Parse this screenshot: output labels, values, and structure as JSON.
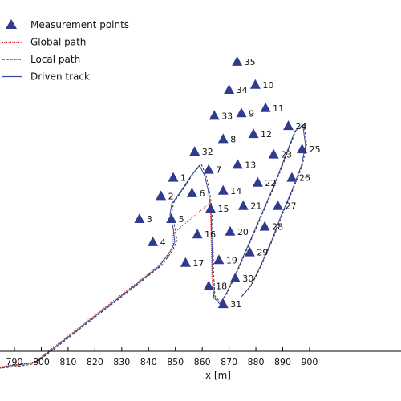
{
  "chart_data": {
    "type": "scatter",
    "xlabel": "x [m]",
    "ylabel": "",
    "xlim": [
      786,
      904
    ],
    "x_ticks": [
      "790",
      "800",
      "810",
      "820",
      "830",
      "840",
      "850",
      "860",
      "870",
      "880",
      "890",
      "900"
    ],
    "grid": false,
    "legend": {
      "placement": "top-left",
      "entries": [
        {
          "label": "Measurement points",
          "marker": "triangle",
          "color": "#2e3b8e"
        },
        {
          "label": "Global path",
          "style": "dotted",
          "color": "#cc1111"
        },
        {
          "label": "Local path",
          "style": "dashed",
          "color": "#333333"
        },
        {
          "label": "Driven track",
          "style": "solid",
          "color": "#3a4aa8"
        }
      ]
    },
    "colors": {
      "measurement_points": "#2e3b8e",
      "global_path": "#cc1111",
      "local_path": "#333333",
      "driven_track": "#3a4aa8",
      "axis": "#000000"
    },
    "points": [
      {
        "label": "1",
        "x": 849.2,
        "y": 40.0
      },
      {
        "label": "2",
        "x": 844.6,
        "y": 34.1
      },
      {
        "label": "3",
        "x": 836.6,
        "y": 26.7
      },
      {
        "label": "4",
        "x": 841.6,
        "y": 19.2
      },
      {
        "label": "5",
        "x": 848.5,
        "y": 26.7
      },
      {
        "label": "6",
        "x": 856.2,
        "y": 35.0
      },
      {
        "label": "7",
        "x": 862.4,
        "y": 42.6
      },
      {
        "label": "8",
        "x": 867.8,
        "y": 52.5
      },
      {
        "label": "9",
        "x": 874.6,
        "y": 60.8
      },
      {
        "label": "10",
        "x": 879.8,
        "y": 70.0
      },
      {
        "label": "11",
        "x": 883.6,
        "y": 62.5
      },
      {
        "label": "12",
        "x": 879.1,
        "y": 54.1
      },
      {
        "label": "13",
        "x": 873.2,
        "y": 44.2
      },
      {
        "label": "14",
        "x": 867.8,
        "y": 35.8
      },
      {
        "label": "15",
        "x": 863.1,
        "y": 30.0
      },
      {
        "label": "16",
        "x": 858.2,
        "y": 21.7
      },
      {
        "label": "17",
        "x": 853.8,
        "y": 12.5
      },
      {
        "label": "18",
        "x": 862.4,
        "y": 5.0
      },
      {
        "label": "19",
        "x": 866.2,
        "y": 13.4
      },
      {
        "label": "20",
        "x": 870.4,
        "y": 22.6
      },
      {
        "label": "21",
        "x": 875.3,
        "y": 30.9
      },
      {
        "label": "22",
        "x": 880.7,
        "y": 38.4
      },
      {
        "label": "23",
        "x": 886.6,
        "y": 47.5
      },
      {
        "label": "24",
        "x": 892.1,
        "y": 56.7
      },
      {
        "label": "25",
        "x": 897.2,
        "y": 49.2
      },
      {
        "label": "26",
        "x": 893.4,
        "y": 40.0
      },
      {
        "label": "27",
        "x": 888.2,
        "y": 30.9
      },
      {
        "label": "28",
        "x": 883.3,
        "y": 24.2
      },
      {
        "label": "29",
        "x": 877.7,
        "y": 15.9
      },
      {
        "label": "30",
        "x": 872.3,
        "y": 7.5
      },
      {
        "label": "31",
        "x": 867.8,
        "y": -0.8
      },
      {
        "label": "32",
        "x": 857.2,
        "y": 48.4
      },
      {
        "label": "33",
        "x": 864.5,
        "y": 60.0
      },
      {
        "label": "34",
        "x": 870.0,
        "y": 68.4
      },
      {
        "label": "35",
        "x": 873.0,
        "y": 77.5
      }
    ],
    "driven_track": [
      [
        784,
        -21.4
      ],
      [
        788,
        -20.8
      ],
      [
        792,
        -20.4
      ],
      [
        796,
        -19.9
      ],
      [
        798,
        -19.5
      ],
      [
        804,
        -15.5
      ],
      [
        812,
        -10.1
      ],
      [
        820,
        -4.7
      ],
      [
        828,
        0.6
      ],
      [
        836,
        6.0
      ],
      [
        844,
        11.4
      ],
      [
        848,
        16.0
      ],
      [
        849.8,
        19.3
      ],
      [
        849.2,
        23.6
      ],
      [
        848.0,
        28.0
      ],
      [
        848.6,
        31.5
      ],
      [
        852.1,
        35.7
      ],
      [
        856.2,
        41.0
      ],
      [
        859.0,
        44.0
      ],
      [
        861.0,
        40.5
      ],
      [
        862.2,
        36.0
      ],
      [
        863.2,
        30.0
      ],
      [
        863.6,
        20.0
      ],
      [
        863.8,
        10.0
      ],
      [
        864.3,
        1.5
      ],
      [
        866.5,
        -0.8
      ],
      [
        869.2,
        3.0
      ],
      [
        873.0,
        10.0
      ],
      [
        878.0,
        20.0
      ],
      [
        882.0,
        28.0
      ],
      [
        887.0,
        38.0
      ],
      [
        891.0,
        47.0
      ],
      [
        894.5,
        55.0
      ],
      [
        897.5,
        57.0
      ],
      [
        898.5,
        50.5
      ],
      [
        897.0,
        44.0
      ],
      [
        893.5,
        36.0
      ],
      [
        889.5,
        28.0
      ],
      [
        886.0,
        20.0
      ],
      [
        882.0,
        12.0
      ],
      [
        878.0,
        5.0
      ],
      [
        874.5,
        1.5
      ]
    ],
    "local_path": [
      [
        784,
        -21.6
      ],
      [
        788,
        -21.2
      ],
      [
        792,
        -20.8
      ],
      [
        796,
        -20.3
      ],
      [
        798,
        -19.7
      ],
      [
        805,
        -15.2
      ],
      [
        813,
        -9.8
      ],
      [
        821,
        -4.4
      ],
      [
        829,
        0.9
      ],
      [
        837,
        6.3
      ],
      [
        845,
        11.8
      ],
      [
        849,
        16.5
      ],
      [
        850.6,
        19.8
      ],
      [
        849.6,
        24.5
      ],
      [
        848.6,
        28.6
      ],
      [
        849.4,
        32.0
      ],
      [
        852.8,
        36.2
      ],
      [
        856.8,
        41.5
      ],
      [
        859.6,
        44.4
      ],
      [
        861.4,
        40.8
      ],
      [
        862.6,
        36.3
      ],
      [
        863.6,
        30.2
      ],
      [
        864.0,
        20.2
      ],
      [
        864.2,
        10.2
      ],
      [
        864.7,
        1.8
      ],
      [
        867.0,
        -0.5
      ],
      [
        869.6,
        3.3
      ],
      [
        873.4,
        10.3
      ],
      [
        878.4,
        20.3
      ],
      [
        882.4,
        28.3
      ],
      [
        887.4,
        38.3
      ],
      [
        891.4,
        47.3
      ],
      [
        894.9,
        55.3
      ],
      [
        897.9,
        57.3
      ],
      [
        898.9,
        50.8
      ],
      [
        897.4,
        44.3
      ],
      [
        893.9,
        36.3
      ],
      [
        889.9,
        28.3
      ],
      [
        886.4,
        20.3
      ],
      [
        882.4,
        12.3
      ],
      [
        878.4,
        5.3
      ],
      [
        874.9,
        1.8
      ]
    ],
    "global_path": [
      [
        784,
        -21.2
      ],
      [
        788,
        -20.6
      ],
      [
        792,
        -20.2
      ],
      [
        796,
        -19.7
      ],
      [
        798,
        -19.3
      ],
      [
        804,
        -15.1
      ],
      [
        812,
        -9.7
      ],
      [
        820,
        -4.3
      ],
      [
        828,
        1.0
      ],
      [
        836,
        6.4
      ],
      [
        844,
        11.8
      ],
      [
        849.2,
        17.5
      ],
      [
        849.2,
        22.0
      ],
      [
        863.0,
        32.0
      ],
      [
        863.3,
        20.0
      ],
      [
        863.6,
        8.0
      ],
      [
        864.2,
        1.0
      ],
      [
        867.8,
        -0.8
      ]
    ]
  }
}
